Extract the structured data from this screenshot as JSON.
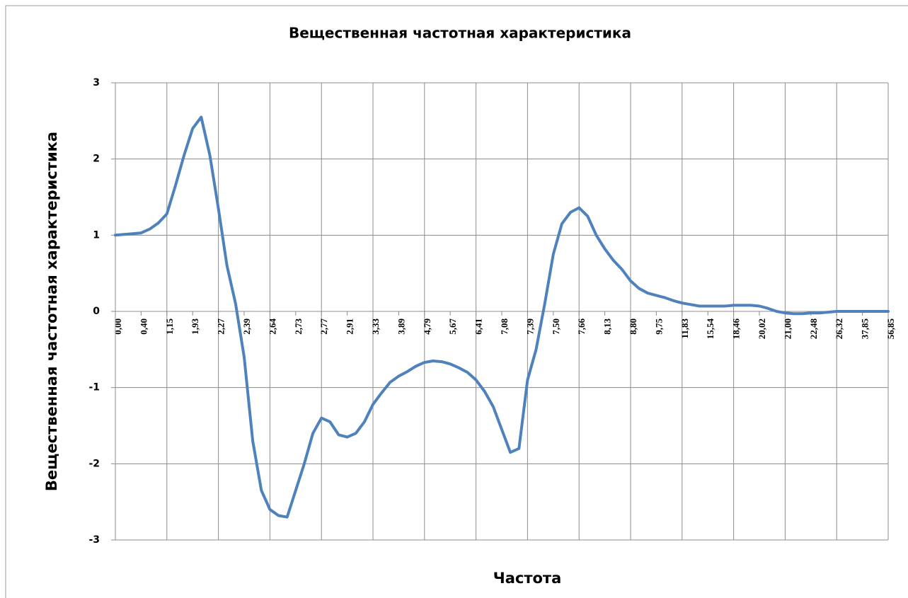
{
  "chart_data": {
    "type": "line",
    "title": "Вещественная частотная характеристика",
    "x_label": "Частота",
    "y_label": "Вещественная частотная характеристика",
    "categories": [
      "0,00",
      null,
      null,
      "0,40",
      null,
      null,
      "1,15",
      null,
      null,
      "1,93",
      null,
      null,
      "2,27",
      null,
      null,
      "2,39",
      null,
      null,
      "2,64",
      null,
      null,
      "2,73",
      null,
      null,
      "2,77",
      null,
      null,
      "2,91",
      null,
      null,
      "3,33",
      null,
      null,
      "3,89",
      null,
      null,
      "4,79",
      null,
      null,
      "5,67",
      null,
      null,
      "6,41",
      null,
      null,
      "7,08",
      null,
      null,
      "7,39",
      null,
      null,
      "7,50",
      null,
      null,
      "7,66",
      null,
      null,
      "8,13",
      null,
      null,
      "8,80",
      null,
      null,
      "9,75",
      null,
      null,
      "11,83",
      null,
      null,
      "15,54",
      null,
      null,
      "18,46",
      null,
      null,
      "20,02",
      null,
      null,
      "21,00",
      null,
      null,
      "22,48",
      null,
      null,
      "26,32",
      null,
      null,
      "37,85",
      null,
      null,
      "56,85"
    ],
    "series": [
      {
        "name": "Вещественная частотная характеристика",
        "color": "#4f81bd",
        "values": [
          1.0,
          1.01,
          1.02,
          1.03,
          1.08,
          1.16,
          1.28,
          1.65,
          2.05,
          2.4,
          2.55,
          2.05,
          1.35,
          0.6,
          0.1,
          -0.6,
          -1.7,
          -2.35,
          -2.6,
          -2.68,
          -2.7,
          -2.35,
          -2.0,
          -1.6,
          -1.4,
          -1.45,
          -1.62,
          -1.65,
          -1.6,
          -1.45,
          -1.22,
          -1.07,
          -0.93,
          -0.85,
          -0.79,
          -0.72,
          -0.67,
          -0.65,
          -0.66,
          -0.69,
          -0.74,
          -0.8,
          -0.9,
          -1.05,
          -1.25,
          -1.55,
          -1.85,
          -1.8,
          -0.9,
          -0.5,
          0.1,
          0.75,
          1.15,
          1.3,
          1.36,
          1.25,
          1.0,
          0.82,
          0.67,
          0.55,
          0.4,
          0.3,
          0.24,
          0.21,
          0.18,
          0.14,
          0.11,
          0.09,
          0.07,
          0.07,
          0.07,
          0.07,
          0.08,
          0.08,
          0.08,
          0.07,
          0.04,
          0.0,
          -0.02,
          -0.03,
          -0.03,
          -0.02,
          -0.02,
          -0.01,
          0.0,
          0.0,
          0.0,
          0.0,
          0.0,
          0.0,
          0.0
        ]
      }
    ],
    "ylim": [
      -3,
      3
    ],
    "yticks": [
      -3,
      -2,
      -1,
      0,
      1,
      2,
      3
    ],
    "grid": true,
    "legend": false
  }
}
